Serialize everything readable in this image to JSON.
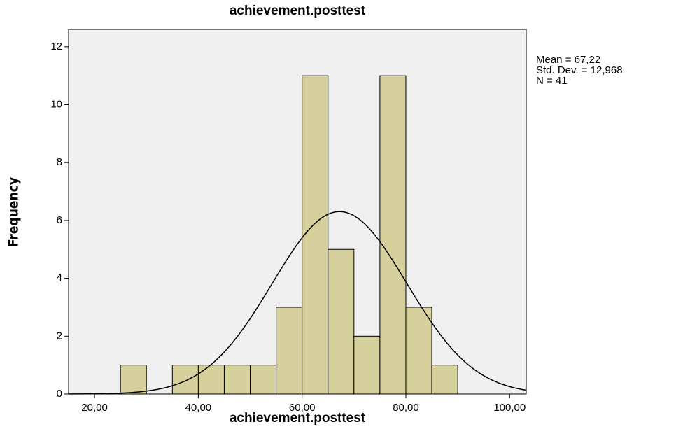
{
  "chart_data": {
    "type": "histogram",
    "title": "achievement.posttest",
    "x_label": "achievement.posttest",
    "y_label": "Frequency",
    "bins": [
      25,
      30,
      35,
      40,
      45,
      50,
      55,
      60,
      65,
      70,
      75,
      80,
      85,
      90
    ],
    "values": [
      1,
      0,
      1,
      1,
      1,
      1,
      3,
      11,
      5,
      2,
      11,
      3,
      1
    ],
    "color": "#d6d09c",
    "xlim": [
      15,
      103.2
    ],
    "ylim": [
      0,
      12.6
    ],
    "xticks": [
      {
        "value": 20,
        "label": "20,00"
      },
      {
        "value": 40,
        "label": "40,00"
      },
      {
        "value": 60,
        "label": "60,00"
      },
      {
        "value": 80,
        "label": "80,00"
      },
      {
        "value": 100,
        "label": "100,00"
      }
    ],
    "yticks": [
      0,
      2,
      4,
      6,
      8,
      10,
      12
    ],
    "stats": [
      {
        "value": 67.22,
        "label": "Mean = 67,22"
      },
      {
        "value": 12.968,
        "label": "Std. Dev. = 12,968"
      },
      {
        "value": 41,
        "label": "N = 41"
      }
    ],
    "normal_curve": true
  }
}
